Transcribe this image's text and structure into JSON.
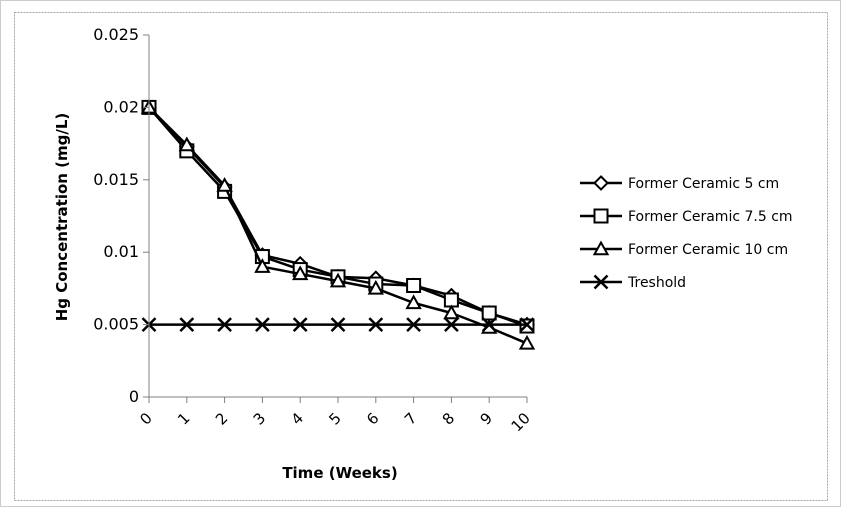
{
  "chart_data": {
    "type": "line",
    "xlabel": "Time (Weeks)",
    "ylabel": "Hg Concentration (mg/L)",
    "x": [
      0,
      1,
      2,
      3,
      4,
      5,
      6,
      7,
      8,
      9,
      10
    ],
    "xtick_labels": [
      "0",
      "1",
      "2",
      "3",
      "4",
      "5",
      "6",
      "7",
      "8",
      "9",
      "10"
    ],
    "ylim": [
      0,
      0.025
    ],
    "ytick_labels": [
      "0",
      "0.005",
      "0.01",
      "0.015",
      "0.02",
      "0.025"
    ],
    "yticks": [
      0,
      0.005,
      0.01,
      0.015,
      0.02,
      0.025
    ],
    "grid": false,
    "legend_position": "right",
    "series": [
      {
        "name": "Former Ceramic 5 cm",
        "marker": "diamond",
        "values": [
          0.02,
          0.0173,
          0.0145,
          0.0098,
          0.0092,
          0.0083,
          0.0082,
          0.0077,
          0.007,
          0.0058,
          0.005
        ]
      },
      {
        "name": "Former Ceramic 7.5 cm",
        "marker": "square",
        "values": [
          0.02,
          0.017,
          0.0142,
          0.0097,
          0.0088,
          0.0083,
          0.0078,
          0.0077,
          0.0067,
          0.0058,
          0.0049
        ]
      },
      {
        "name": "Former Ceramic 10 cm",
        "marker": "triangle",
        "values": [
          0.02,
          0.0174,
          0.0146,
          0.009,
          0.0085,
          0.008,
          0.0075,
          0.0065,
          0.0058,
          0.0048,
          0.0037
        ]
      },
      {
        "name": "Treshold",
        "marker": "x",
        "values": [
          0.005,
          0.005,
          0.005,
          0.005,
          0.005,
          0.005,
          0.005,
          0.005,
          0.005,
          0.005,
          0.005
        ]
      }
    ],
    "line_color": "#000000",
    "frame_border_color": "#a6a6a6"
  }
}
